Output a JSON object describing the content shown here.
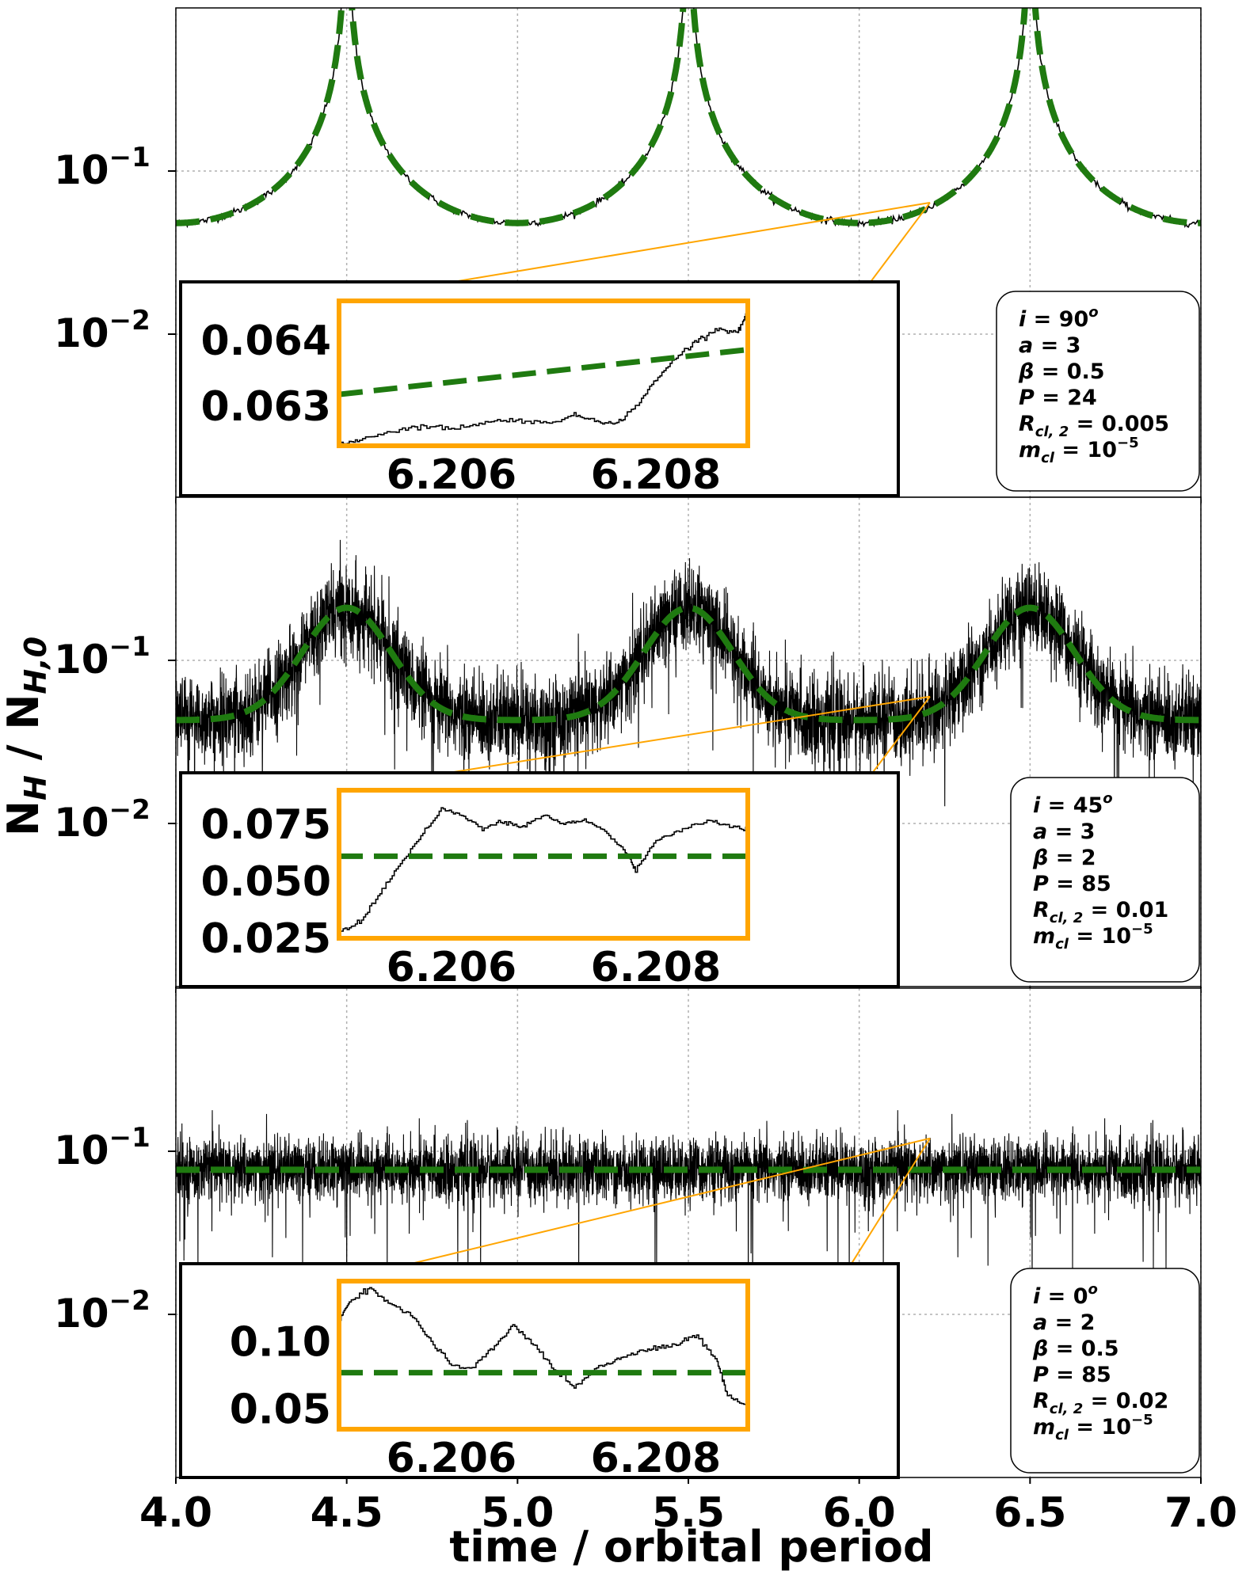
{
  "chart_data": {
    "type": "line",
    "xlabel": "time / orbital period",
    "ylabel": "N_H / N_H,0",
    "ylabel_parts": {
      "main": "N",
      "sub1": "H",
      "sep": " / N",
      "sub2": "H,0"
    },
    "xlim": [
      4.0,
      7.0
    ],
    "x_ticks": [
      "4.0",
      "4.5",
      "5.0",
      "5.5",
      "6.0",
      "6.5",
      "7.0"
    ],
    "x_tick_values": [
      4.0,
      4.5,
      5.0,
      5.5,
      6.0,
      6.5,
      7.0
    ],
    "yscale": "log",
    "ylim": [
      0.001,
      1.0
    ],
    "y_ticks": [
      {
        "base": "10",
        "exp": "−1",
        "value": 0.1
      },
      {
        "base": "10",
        "exp": "−2",
        "value": 0.01
      }
    ],
    "grid": true,
    "colors": {
      "data": "#000000",
      "model": "#1f7a10",
      "zoom": "#ffa500",
      "grid": "#b0b0b0"
    },
    "panels": [
      {
        "params": [
          {
            "sym": "i",
            "val": "90",
            "sup": "o"
          },
          {
            "sym": "a",
            "val": "3"
          },
          {
            "sym": "β",
            "val": "0.5"
          },
          {
            "sym": "P",
            "val": "24"
          },
          {
            "sym": "R",
            "sub": "cl, 2",
            "val": "0.005"
          },
          {
            "sym": "m",
            "sub": "cl",
            "val": "10",
            "sup": "−5"
          }
        ],
        "model": {
          "shape": "cusp",
          "baseline": 0.048,
          "peaks_at": [
            4.5,
            5.5,
            6.5
          ],
          "exceeds_top": true
        },
        "zoom_source": {
          "x": 6.207,
          "y": 0.064
        },
        "inset": {
          "x_ticks": [
            "6.206",
            "6.208"
          ],
          "x_tick_values": [
            6.206,
            6.208
          ],
          "y_ticks": [
            "0.064",
            "0.063"
          ],
          "y_tick_values": [
            0.064,
            0.063
          ],
          "xlim": [
            6.2049,
            6.2089
          ],
          "ylim": [
            0.0624,
            0.0646
          ],
          "model_line": [
            [
              6.2049,
              0.06318
            ],
            [
              6.2089,
              0.06386
            ]
          ],
          "data_steps": [
            [
              6.2049,
              0.0624
            ],
            [
              6.2051,
              0.0625
            ],
            [
              6.2054,
              0.06262
            ],
            [
              6.2057,
              0.0627
            ],
            [
              6.206,
              0.06266
            ],
            [
              6.2063,
              0.06275
            ],
            [
              6.2066,
              0.0628
            ],
            [
              6.2069,
              0.06274
            ],
            [
              6.2072,
              0.06286
            ],
            [
              6.2074,
              0.0628
            ],
            [
              6.2076,
              0.06272
            ],
            [
              6.2078,
              0.063
            ],
            [
              6.208,
              0.0634
            ],
            [
              6.2082,
              0.06375
            ],
            [
              6.2084,
              0.064
            ],
            [
              6.2086,
              0.06418
            ],
            [
              6.2088,
              0.06412
            ],
            [
              6.2089,
              0.06445
            ]
          ]
        }
      },
      {
        "params": [
          {
            "sym": "i",
            "val": "45",
            "sup": "o"
          },
          {
            "sym": "a",
            "val": "3"
          },
          {
            "sym": "β",
            "val": "2"
          },
          {
            "sym": "P",
            "val": "85"
          },
          {
            "sym": "R",
            "sub": "cl, 2",
            "val": "0.01"
          },
          {
            "sym": "m",
            "sub": "cl",
            "val": "10",
            "sup": "−5"
          }
        ],
        "model": {
          "shape": "bump",
          "baseline": 0.043,
          "peak": 0.21,
          "peaks_at": [
            4.5,
            5.5,
            6.5
          ]
        },
        "zoom_source": {
          "x": 6.207,
          "y": 0.06
        },
        "inset": {
          "x_ticks": [
            "6.206",
            "6.208"
          ],
          "x_tick_values": [
            6.206,
            6.208
          ],
          "y_ticks": [
            "0.075",
            "0.050",
            "0.025"
          ],
          "y_tick_values": [
            0.075,
            0.05,
            0.025
          ],
          "xlim": [
            6.2049,
            6.2089
          ],
          "ylim": [
            0.025,
            0.09
          ],
          "model_line": [
            [
              6.2049,
              0.061
            ],
            [
              6.2089,
              0.061
            ]
          ],
          "data_steps": [
            [
              6.2049,
              0.028
            ],
            [
              6.2051,
              0.032
            ],
            [
              6.2053,
              0.045
            ],
            [
              6.2055,
              0.058
            ],
            [
              6.2057,
              0.07
            ],
            [
              6.2059,
              0.082
            ],
            [
              6.2061,
              0.079
            ],
            [
              6.2063,
              0.073
            ],
            [
              6.2065,
              0.076
            ],
            [
              6.2067,
              0.074
            ],
            [
              6.2069,
              0.079
            ],
            [
              6.2071,
              0.075
            ],
            [
              6.2073,
              0.077
            ],
            [
              6.2075,
              0.072
            ],
            [
              6.2077,
              0.063
            ],
            [
              6.2078,
              0.055
            ],
            [
              6.208,
              0.068
            ],
            [
              6.2082,
              0.072
            ],
            [
              6.2085,
              0.077
            ],
            [
              6.2087,
              0.074
            ],
            [
              6.2089,
              0.073
            ]
          ]
        }
      },
      {
        "params": [
          {
            "sym": "i",
            "val": "0",
            "sup": "o"
          },
          {
            "sym": "a",
            "val": "2"
          },
          {
            "sym": "β",
            "val": "0.5"
          },
          {
            "sym": "P",
            "val": "85"
          },
          {
            "sym": "R",
            "sub": "cl, 2",
            "val": "0.02"
          },
          {
            "sym": "m",
            "sub": "cl",
            "val": "10",
            "sup": "−5"
          }
        ],
        "model": {
          "shape": "flat",
          "baseline": 0.077
        },
        "zoom_source": {
          "x": 6.207,
          "y": 0.12
        },
        "inset": {
          "x_ticks": [
            "6.206",
            "6.208"
          ],
          "x_tick_values": [
            6.206,
            6.208
          ],
          "y_ticks": [
            "0.10",
            "0.05"
          ],
          "y_tick_values": [
            0.1,
            0.05
          ],
          "xlim": [
            6.2049,
            6.2089
          ],
          "ylim": [
            0.035,
            0.145
          ],
          "model_line": [
            [
              6.2049,
              0.077
            ],
            [
              6.2089,
              0.077
            ]
          ],
          "data_steps": [
            [
              6.2049,
              0.115
            ],
            [
              6.205,
              0.13
            ],
            [
              6.2052,
              0.14
            ],
            [
              6.2054,
              0.128
            ],
            [
              6.2056,
              0.12
            ],
            [
              6.2058,
              0.1
            ],
            [
              6.206,
              0.082
            ],
            [
              6.2062,
              0.08
            ],
            [
              6.2064,
              0.095
            ],
            [
              6.2066,
              0.112
            ],
            [
              6.2068,
              0.098
            ],
            [
              6.207,
              0.08
            ],
            [
              6.2072,
              0.066
            ],
            [
              6.2074,
              0.08
            ],
            [
              6.2076,
              0.086
            ],
            [
              6.2078,
              0.093
            ],
            [
              6.208,
              0.095
            ],
            [
              6.2082,
              0.098
            ],
            [
              6.2084,
              0.105
            ],
            [
              6.2086,
              0.085
            ],
            [
              6.2087,
              0.06
            ],
            [
              6.2089,
              0.052
            ]
          ]
        }
      }
    ]
  }
}
